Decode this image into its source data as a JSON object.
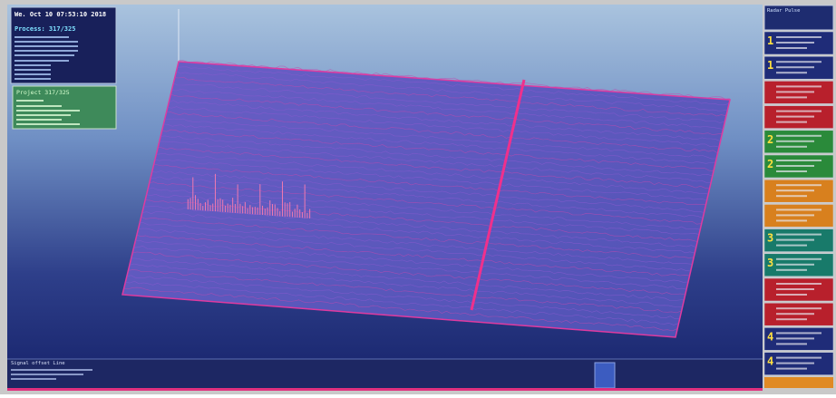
{
  "header": {
    "datetime": "We. Oct 10 07:53:10 2018",
    "process": "Process: 317/325"
  },
  "project_panel": {
    "title": "Project 317/325"
  },
  "sidebar": {
    "title": "Radar Pulse",
    "items": [
      {
        "number": "1"
      },
      {
        "number": "1"
      },
      {
        "number": null
      },
      {
        "number": null
      },
      {
        "number": "2"
      },
      {
        "number": "2"
      },
      {
        "number": null
      },
      {
        "number": null
      },
      {
        "number": "3"
      },
      {
        "number": "3"
      },
      {
        "number": null
      },
      {
        "number": null
      },
      {
        "number": "4"
      },
      {
        "number": "4"
      }
    ]
  },
  "status": {
    "line": "Signal offset Line"
  }
}
